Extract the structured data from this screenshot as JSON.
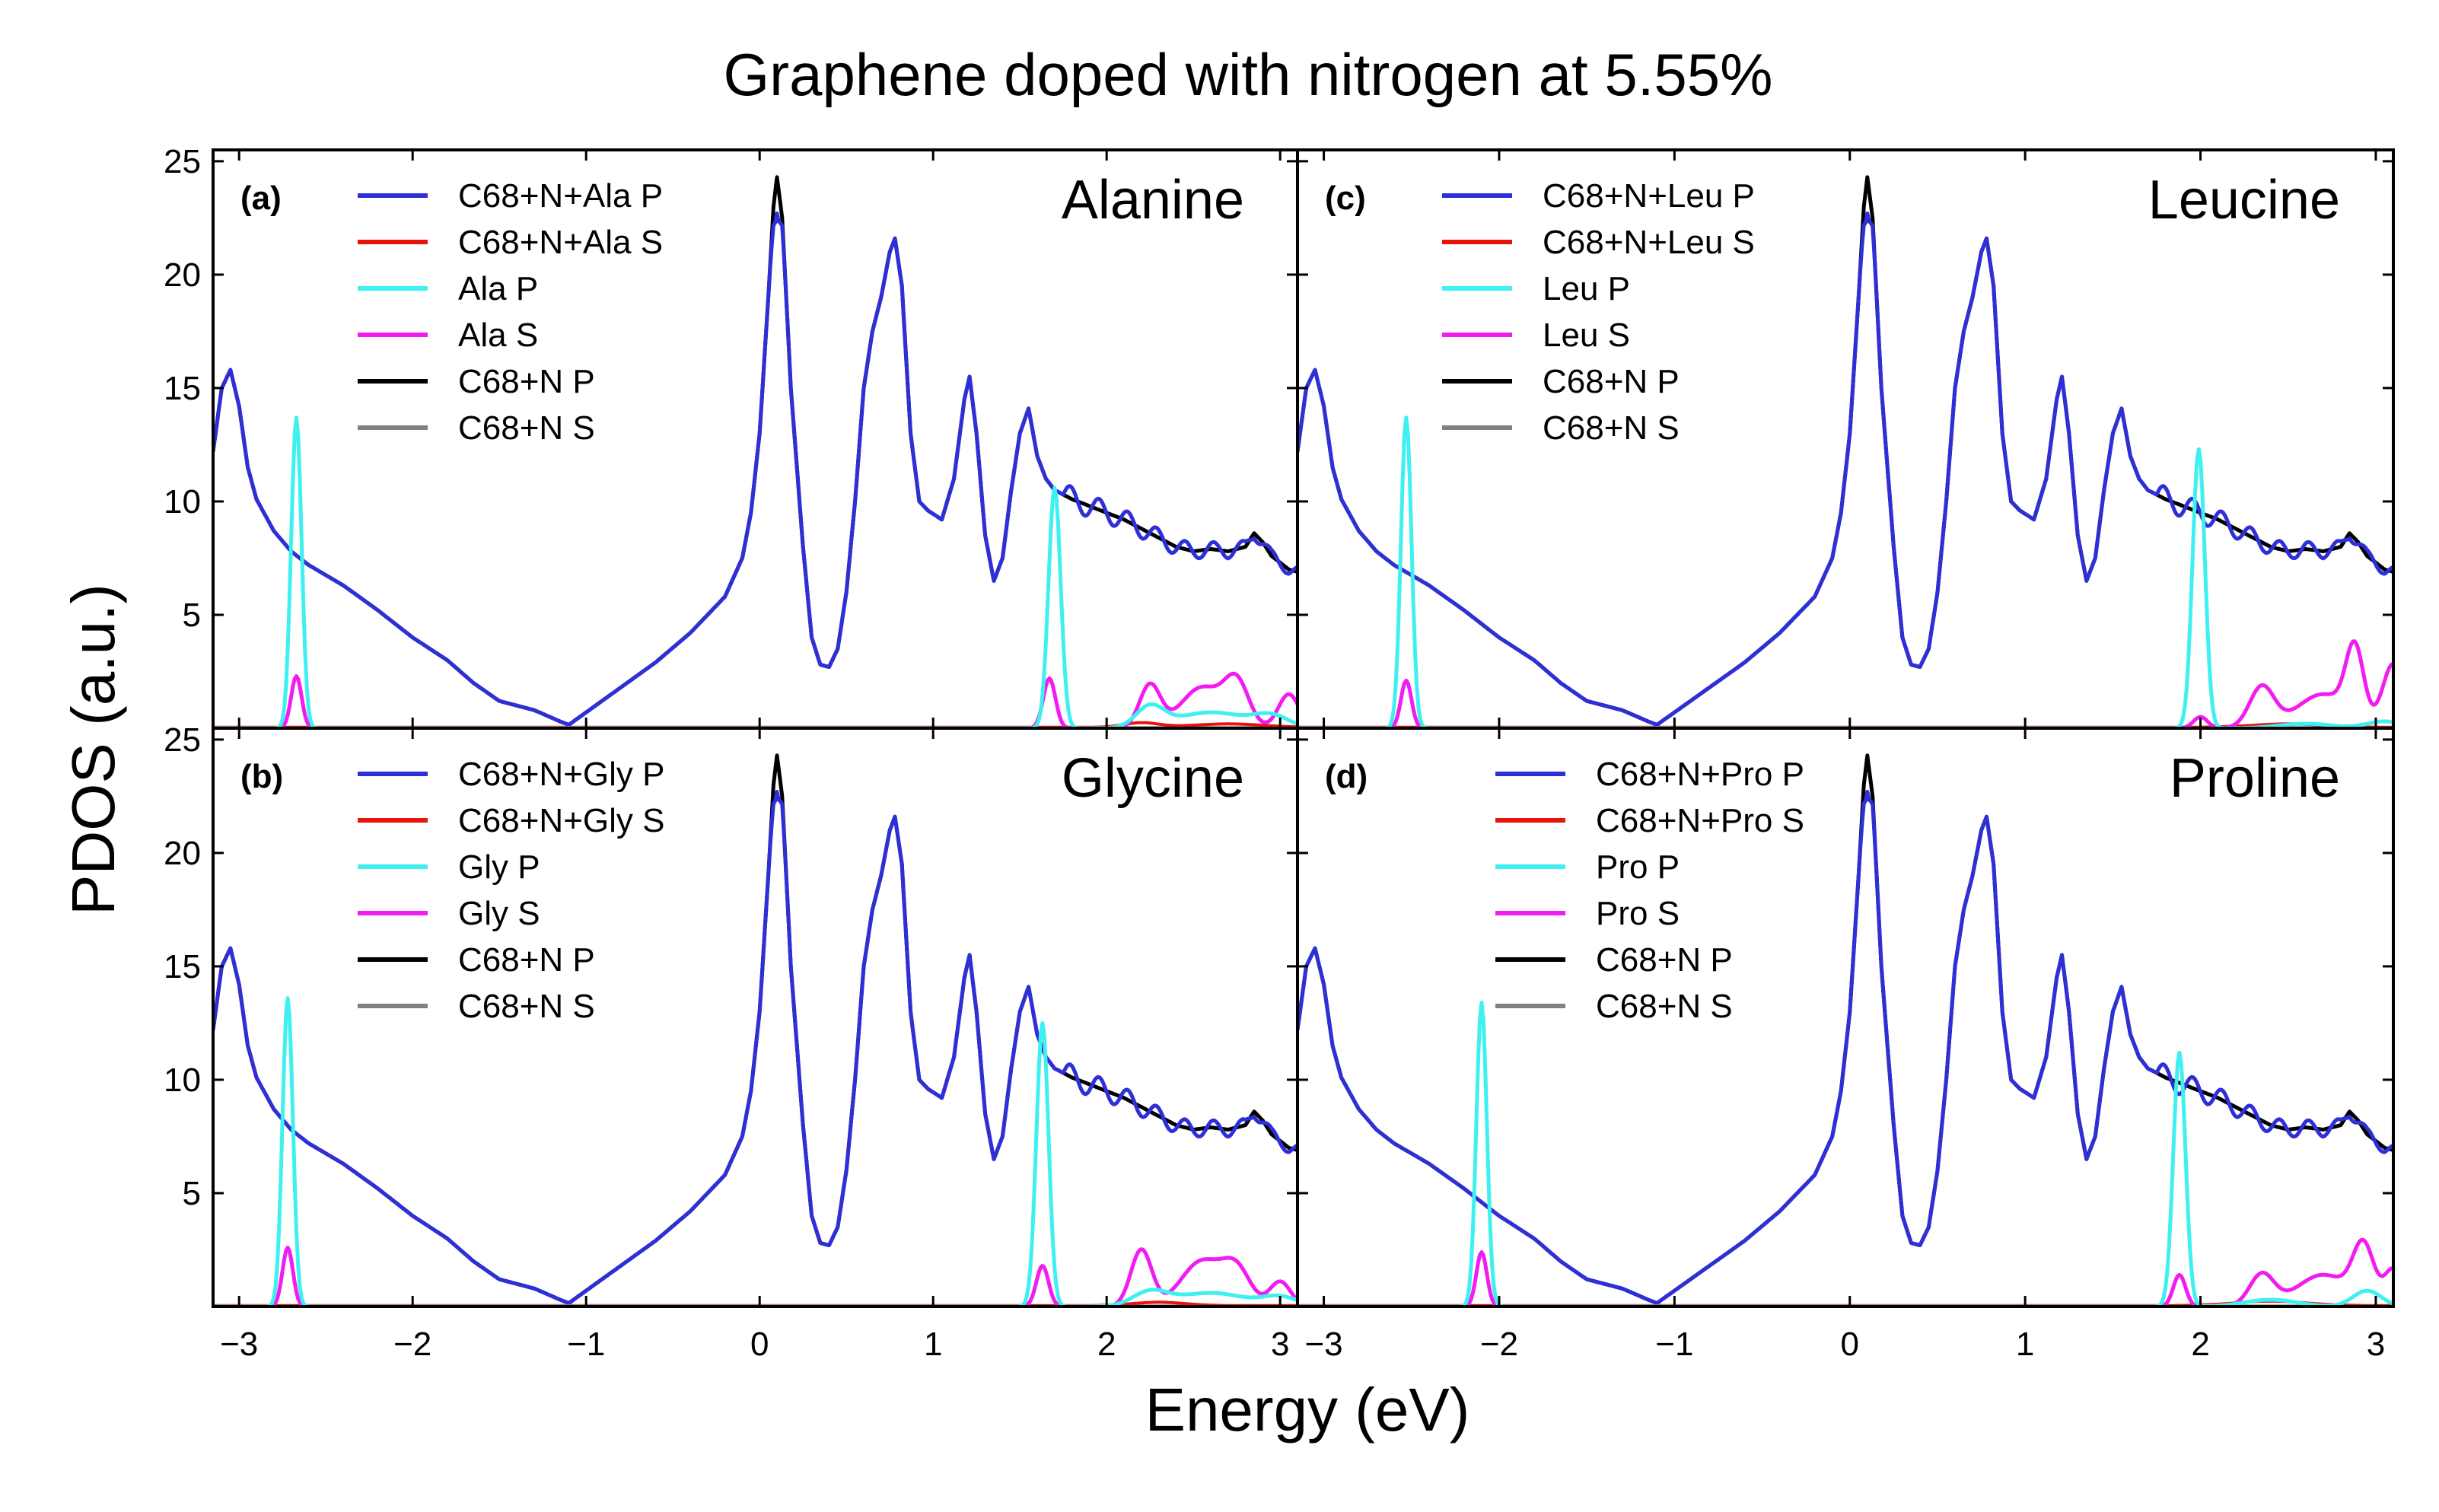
{
  "title": "Graphene doped with nitrogen at 5.55%",
  "colors": {
    "complex_p": "#2f2fd8",
    "complex_s": "#e8140c",
    "amino_p": "#3ff0f0",
    "amino_s": "#f21cf2",
    "pristine_p": "#000000",
    "pristine_s": "#808080"
  },
  "chart_data": {
    "type": "line",
    "xlabel": "Energy (eV)",
    "ylabel": "PDOS (a.u.)",
    "xlim": [
      -3.15,
      3.1
    ],
    "ylim": [
      0,
      25.5
    ],
    "x_ticks": [
      "−3",
      "−2",
      "−1",
      "0",
      "1",
      "2",
      "3"
    ],
    "y_ticks": [
      "5",
      "10",
      "15",
      "20",
      "25"
    ],
    "baseline": [
      [
        -3.15,
        12.2
      ],
      [
        -3.1,
        15
      ],
      [
        -3.05,
        15.8
      ],
      [
        -3,
        14.2
      ],
      [
        -2.95,
        11.5
      ],
      [
        -2.9,
        10.1
      ],
      [
        -2.85,
        9.4
      ],
      [
        -2.8,
        8.7
      ],
      [
        -2.7,
        7.8
      ],
      [
        -2.6,
        7.2
      ],
      [
        -2.4,
        6.3
      ],
      [
        -2.2,
        5.2
      ],
      [
        -2,
        4
      ],
      [
        -1.8,
        3
      ],
      [
        -1.65,
        2
      ],
      [
        -1.5,
        1.2
      ],
      [
        -1.3,
        0.8
      ],
      [
        -1.15,
        0.3
      ],
      [
        -1.1,
        0.15
      ],
      [
        -1.0,
        0.7
      ],
      [
        -0.8,
        1.8
      ],
      [
        -0.6,
        2.9
      ],
      [
        -0.4,
        4.2
      ],
      [
        -0.2,
        5.8
      ],
      [
        -0.1,
        7.5
      ],
      [
        -0.05,
        9.5
      ],
      [
        0,
        13
      ],
      [
        0.05,
        19
      ],
      [
        0.08,
        23
      ],
      [
        0.1,
        24.3
      ],
      [
        0.13,
        22.5
      ],
      [
        0.18,
        15
      ],
      [
        0.25,
        8
      ],
      [
        0.3,
        4
      ],
      [
        0.35,
        2.8
      ],
      [
        0.4,
        2.7
      ],
      [
        0.45,
        3.5
      ],
      [
        0.5,
        6
      ],
      [
        0.55,
        10
      ],
      [
        0.6,
        15
      ],
      [
        0.65,
        17.5
      ],
      [
        0.7,
        19
      ],
      [
        0.75,
        21
      ],
      [
        0.78,
        21.6
      ],
      [
        0.82,
        19.5
      ],
      [
        0.87,
        13
      ],
      [
        0.92,
        10
      ],
      [
        0.97,
        9.6
      ],
      [
        1.05,
        9.2
      ],
      [
        1.12,
        11
      ],
      [
        1.18,
        14.5
      ],
      [
        1.21,
        15.5
      ],
      [
        1.25,
        13
      ],
      [
        1.3,
        8.5
      ],
      [
        1.35,
        6.5
      ],
      [
        1.4,
        7.5
      ],
      [
        1.45,
        10.5
      ],
      [
        1.5,
        13
      ],
      [
        1.55,
        14.1
      ],
      [
        1.6,
        12
      ],
      [
        1.65,
        11
      ],
      [
        1.7,
        10.5
      ],
      [
        1.8,
        10.1
      ],
      [
        1.9,
        9.8
      ],
      [
        2,
        9.5
      ],
      [
        2.1,
        9.2
      ],
      [
        2.2,
        8.8
      ],
      [
        2.3,
        8.4
      ],
      [
        2.4,
        8
      ],
      [
        2.5,
        7.8
      ],
      [
        2.6,
        7.9
      ],
      [
        2.7,
        7.8
      ],
      [
        2.8,
        8
      ],
      [
        2.85,
        8.6
      ],
      [
        2.9,
        8.2
      ],
      [
        2.95,
        7.6
      ],
      [
        3,
        7.3
      ],
      [
        3.05,
        7
      ],
      [
        3.1,
        6.9
      ]
    ],
    "panels": [
      {
        "label": "(a)",
        "name": "Alanine",
        "legend": [
          "C68+N+Ala P",
          "C68+N+Ala S",
          "Ala P",
          "Ala S",
          "C68+N P",
          "C68+N S"
        ],
        "amino_p_peaks": [
          [
            -2.67,
            13.7,
            0.03
          ],
          [
            1.7,
            10.6,
            0.035
          ],
          [
            2.25,
            0.9,
            0.08
          ],
          [
            2.6,
            0.7,
            0.2
          ],
          [
            2.95,
            0.5,
            0.1
          ]
        ],
        "amino_s_peaks": [
          [
            -2.67,
            2.3,
            0.03
          ],
          [
            1.67,
            2.2,
            0.035
          ],
          [
            2.25,
            1.9,
            0.06
          ],
          [
            2.55,
            1.8,
            0.12
          ],
          [
            2.75,
            1.9,
            0.07
          ],
          [
            3.05,
            1.5,
            0.06
          ]
        ],
        "complex_s_peaks": [
          [
            2.2,
            0.2,
            0.1
          ],
          [
            2.7,
            0.15,
            0.2
          ]
        ]
      },
      {
        "label": "(c)",
        "name": "Leucine",
        "legend": [
          "C68+N+Leu P",
          "C68+N+Leu S",
          "Leu P",
          "Leu S",
          "C68+N P",
          "C68+N S"
        ],
        "amino_p_peaks": [
          [
            -2.53,
            13.7,
            0.03
          ],
          [
            1.99,
            12.3,
            0.035
          ],
          [
            2.6,
            0.2,
            0.15
          ],
          [
            3.05,
            0.3,
            0.1
          ]
        ],
        "amino_s_peaks": [
          [
            -2.53,
            2.1,
            0.03
          ],
          [
            2,
            0.5,
            0.04
          ],
          [
            2.35,
            1.8,
            0.07
          ],
          [
            2.7,
            1.5,
            0.15
          ],
          [
            2.88,
            3.1,
            0.05
          ],
          [
            3.1,
            2.8,
            0.06
          ]
        ],
        "complex_s_peaks": [
          [
            2.5,
            0.15,
            0.2
          ]
        ]
      },
      {
        "label": "(b)",
        "name": "Glycine",
        "legend": [
          "C68+N+Gly P",
          "C68+N+Gly S",
          "Gly P",
          "Gly S",
          "C68+N P",
          "C68+N S"
        ],
        "amino_p_peaks": [
          [
            -2.72,
            13.6,
            0.03
          ],
          [
            1.63,
            12.5,
            0.035
          ],
          [
            2.25,
            0.6,
            0.1
          ],
          [
            2.6,
            0.6,
            0.2
          ],
          [
            3,
            0.4,
            0.1
          ]
        ],
        "amino_s_peaks": [
          [
            -2.72,
            2.6,
            0.03
          ],
          [
            1.63,
            1.8,
            0.035
          ],
          [
            2.2,
            2.5,
            0.06
          ],
          [
            2.55,
            2,
            0.12
          ],
          [
            2.75,
            1.5,
            0.08
          ],
          [
            3,
            1.1,
            0.06
          ]
        ],
        "complex_s_peaks": [
          [
            2.3,
            0.15,
            0.15
          ]
        ]
      },
      {
        "label": "(d)",
        "name": "Proline",
        "legend": [
          "C68+N+Pro P",
          "C68+N+Pro S",
          "Pro P",
          "Pro S",
          "C68+N P",
          "C68+N S"
        ],
        "amino_p_peaks": [
          [
            -2.1,
            13.4,
            0.03
          ],
          [
            1.88,
            11.2,
            0.035
          ],
          [
            2.4,
            0.3,
            0.15
          ],
          [
            2.95,
            0.7,
            0.08
          ]
        ],
        "amino_s_peaks": [
          [
            -2.1,
            2.4,
            0.03
          ],
          [
            1.88,
            1.4,
            0.035
          ],
          [
            2.35,
            1.4,
            0.07
          ],
          [
            2.7,
            1.4,
            0.15
          ],
          [
            2.93,
            2.5,
            0.06
          ],
          [
            3.1,
            1.6,
            0.05
          ]
        ],
        "complex_s_peaks": [
          [
            2.4,
            0.2,
            0.2
          ]
        ]
      }
    ]
  }
}
